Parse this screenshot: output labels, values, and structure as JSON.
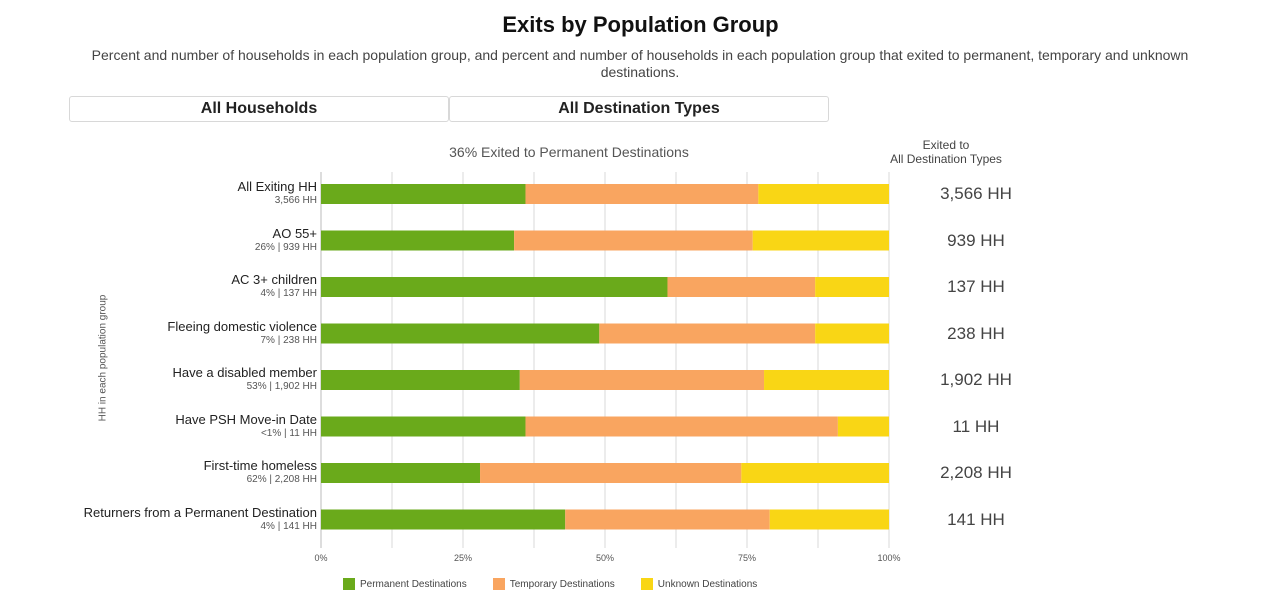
{
  "page": {
    "title": "Exits by Population Group",
    "subtitle": "Percent and number of households in each population group, and percent and number of households in each population group that exited to permanent, temporary and unknown destinations."
  },
  "filters": {
    "household_label": "All Households",
    "destination_label": "All Destination Types"
  },
  "right_header": {
    "line1": "Exited to",
    "line2": "All Destination Types"
  },
  "colors": {
    "permanent": "#6aaa1b",
    "temporary": "#f9a560",
    "unknown": "#f9d615",
    "grid": "#d9d9d9"
  },
  "chart_data": {
    "type": "bar",
    "orientation": "horizontal",
    "stacked": true,
    "title": "36% Exited to Permanent Destinations",
    "ylabel": "HH in each population group",
    "xlim": [
      0,
      100
    ],
    "xticks": [
      "0%",
      "25%",
      "50%",
      "75%",
      "100%"
    ],
    "legend_position": "bottom",
    "categories": [
      "All Exiting HH",
      "AO 55+",
      "AC 3+ children",
      "Fleeing domestic violence",
      "Have a disabled member",
      "Have PSH Move-in Date",
      "First-time homeless",
      "Returners from a Permanent Destination"
    ],
    "category_subtitles": [
      "3,566 HH",
      "26% | 939 HH",
      "4% | 137 HH",
      "7% | 238 HH",
      "53% | 1,902 HH",
      "<1% | 11 HH",
      "62% | 2,208 HH",
      "4% | 141 HH"
    ],
    "totals": [
      "3,566 HH",
      "939 HH",
      "137 HH",
      "238 HH",
      "1,902 HH",
      "11 HH",
      "2,208 HH",
      "141 HH"
    ],
    "series": [
      {
        "name": "Permanent Destinations",
        "values": [
          36,
          34,
          61,
          49,
          35,
          36,
          28,
          43
        ]
      },
      {
        "name": "Temporary Destinations",
        "values": [
          41,
          42,
          26,
          38,
          43,
          55,
          46,
          36
        ]
      },
      {
        "name": "Unknown Destinations",
        "values": [
          23,
          24,
          13,
          13,
          22,
          9,
          26,
          21
        ]
      }
    ]
  }
}
